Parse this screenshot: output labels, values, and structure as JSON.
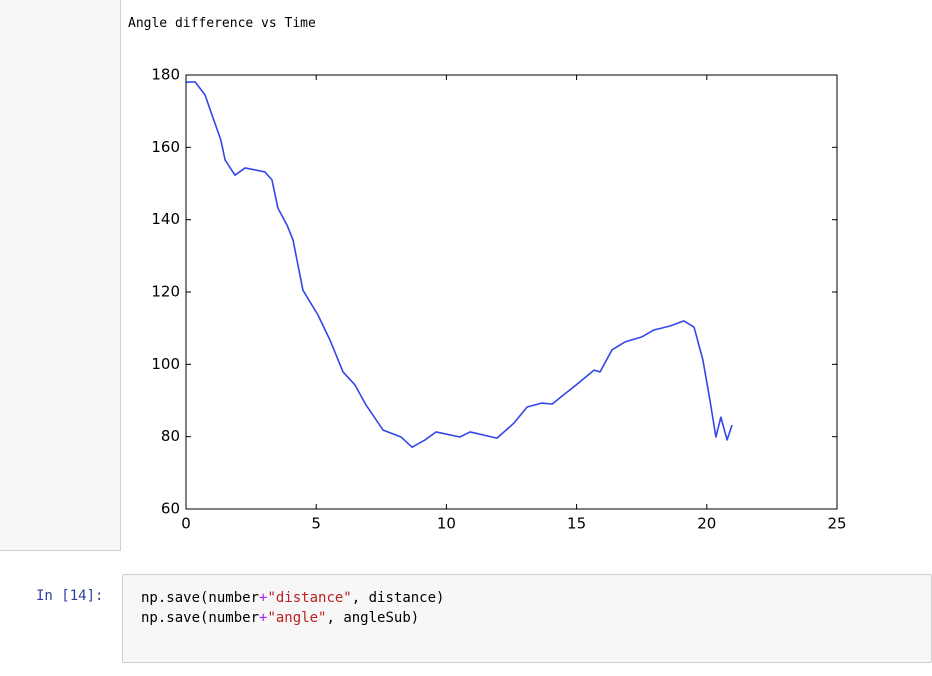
{
  "output_text": "Angle difference vs Time",
  "chart_data": {
    "type": "line",
    "x": [
      0,
      0.35,
      0.73,
      1.04,
      1.34,
      1.5,
      1.88,
      2.27,
      3.03,
      3.3,
      3.53,
      3.88,
      4.11,
      4.49,
      5.07,
      5.53,
      6.03,
      6.49,
      6.91,
      7.57,
      8.26,
      8.68,
      9.18,
      9.6,
      10.52,
      10.91,
      11.94,
      12.29,
      12.6,
      13.1,
      13.67,
      14.06,
      14.44,
      14.98,
      15.67,
      15.9,
      16.36,
      16.86,
      17.51,
      17.97,
      18.59,
      19.12,
      19.51,
      19.85,
      20.12,
      20.35,
      20.54,
      20.78,
      20.97
    ],
    "series": [
      {
        "color": "#3347e8",
        "values": [
          178,
          178.1,
          174.5,
          168.1,
          162.0,
          156.5,
          152.3,
          154.3,
          153.2,
          151.0,
          143.2,
          138.5,
          134.4,
          120.5,
          113.6,
          106.7,
          97.9,
          94.3,
          88.8,
          81.8,
          79.9,
          77.1,
          79.1,
          81.3,
          79.9,
          81.3,
          79.6,
          81.8,
          83.8,
          88.2,
          89.3,
          89.0,
          91.2,
          94.3,
          98.4,
          97.9,
          104.0,
          106.2,
          107.6,
          109.5,
          110.6,
          112.0,
          110.3,
          101.2,
          90.1,
          79.9,
          85.4,
          79.1,
          83.2
        ]
      }
    ],
    "xlim": [
      0,
      25
    ],
    "ylim": [
      60,
      180
    ],
    "xticks": [
      0,
      5,
      10,
      15,
      20,
      25
    ],
    "yticks": [
      60,
      80,
      100,
      120,
      140,
      160,
      180
    ]
  },
  "cell": {
    "prompt": "In [14]:",
    "code": [
      [
        "np.save(number",
        "+",
        "\"distance\"",
        ", distance)"
      ],
      [
        "np.save(number",
        "+",
        "\"angle\"",
        ", angleSub)"
      ]
    ]
  }
}
